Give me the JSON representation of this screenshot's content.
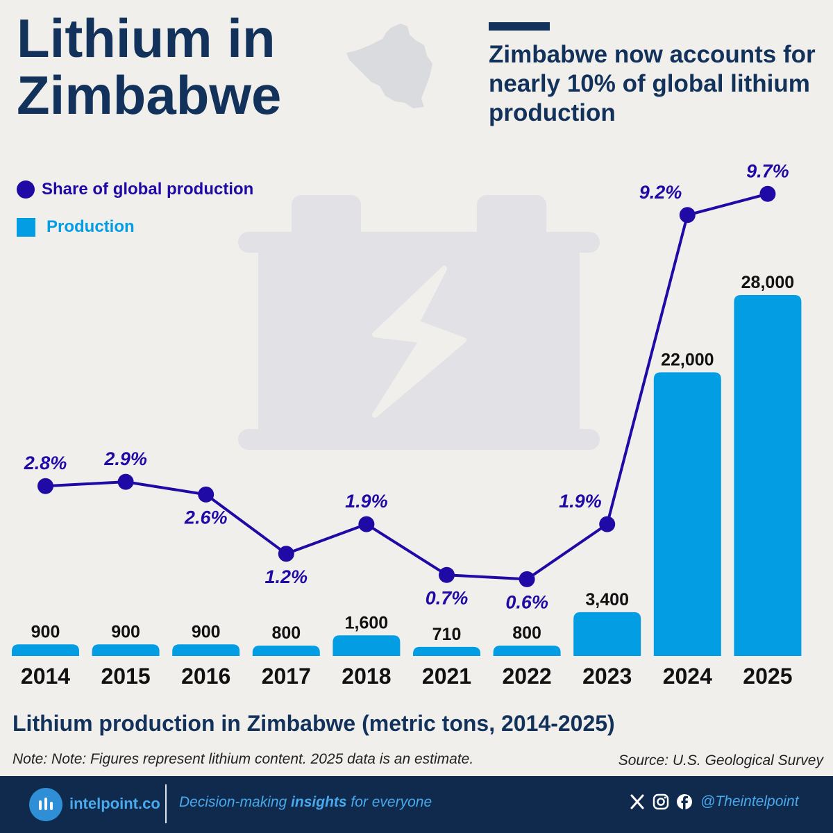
{
  "title_line1": "Lithium in",
  "title_line2": "Zimbabwe",
  "subtitle": "Zimbabwe now accounts for nearly 10% of global lithium production",
  "legend": {
    "share_label": "Share of global production",
    "production_label": "Production"
  },
  "caption": "Lithium production in Zimbabwe (metric tons, 2014-2025)",
  "note": "Note: Note: Figures represent lithium content. 2025 data is an estimate.",
  "source": "Source: U.S. Geological Survey",
  "footer": {
    "brand": "intelpoint.co",
    "tagline_before": "Decision-making ",
    "tagline_bold": "insights",
    "tagline_after": " for everyone",
    "handle": "@Theintelpoint",
    "icons": [
      "x-icon",
      "instagram-icon",
      "facebook-icon"
    ]
  },
  "colors": {
    "title": "#13325b",
    "bar": "#039de3",
    "line": "#1f0aa6",
    "background": "#f1efec",
    "footer": "#0f2a4d",
    "accent_text": "#4aa9ec",
    "battery_icon": "#e1e1e6"
  },
  "chart_data": {
    "type": "bar",
    "categories": [
      "2014",
      "2015",
      "2016",
      "2017",
      "2018",
      "2021",
      "2022",
      "2023",
      "2024",
      "2025"
    ],
    "series": [
      {
        "name": "Production",
        "type": "bar",
        "values": [
          900,
          900,
          900,
          800,
          1600,
          710,
          800,
          3400,
          22000,
          28000
        ],
        "labels": [
          "900",
          "900",
          "900",
          "800",
          "1,600",
          "710",
          "800",
          "3,400",
          "22,000",
          "28,000"
        ]
      },
      {
        "name": "Share of global production",
        "type": "line",
        "values": [
          2.8,
          2.9,
          2.6,
          1.2,
          1.9,
          0.7,
          0.6,
          1.9,
          9.2,
          9.7
        ],
        "labels": [
          "2.8%",
          "2.9%",
          "2.6%",
          "1.2%",
          "1.9%",
          "0.7%",
          "0.6%",
          "1.9%",
          "9.2%",
          "9.7%"
        ],
        "label_positions": [
          "above",
          "above",
          "below",
          "below",
          "above",
          "below",
          "below",
          "above-left",
          "above-left",
          "above"
        ]
      }
    ],
    "xlabel": "",
    "ylabel": "",
    "grid": false
  }
}
